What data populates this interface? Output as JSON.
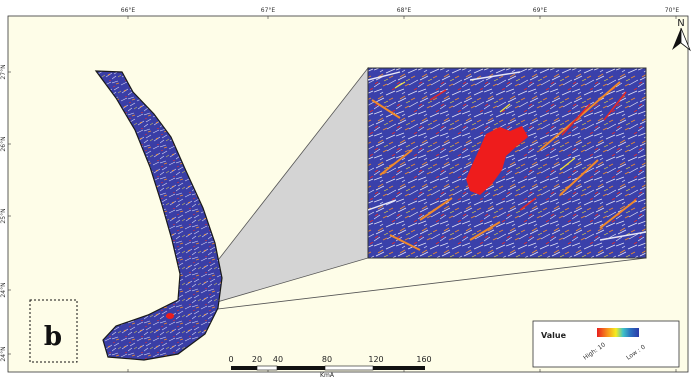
{
  "colors": {
    "background": "#fefde8",
    "raster_base": "#3a3ea6",
    "high": "#e81e1e",
    "low": "#2b3aa8",
    "connector_fill": "#d4d4d4",
    "focus_area": "#ee1c1c"
  },
  "icons": {
    "north_arrow": "north-arrow-icon"
  },
  "map": {
    "panel_label": "b",
    "north_label": "N",
    "top_ticks": [
      "66°E",
      "67°E",
      "68°E",
      "69°E",
      "70°E"
    ],
    "bottom_ticks": [
      "",
      "",
      "",
      "",
      ""
    ],
    "left_ticks": [
      "27°N",
      "26°N",
      "25°N",
      "24°N",
      "24°N"
    ]
  },
  "scale_bar": {
    "labels": [
      "0",
      "20",
      "40",
      "80",
      "120",
      "160"
    ],
    "unit": "KmA"
  },
  "legend": {
    "title": "Value",
    "high": "High: 10",
    "low": "Low : 0"
  }
}
